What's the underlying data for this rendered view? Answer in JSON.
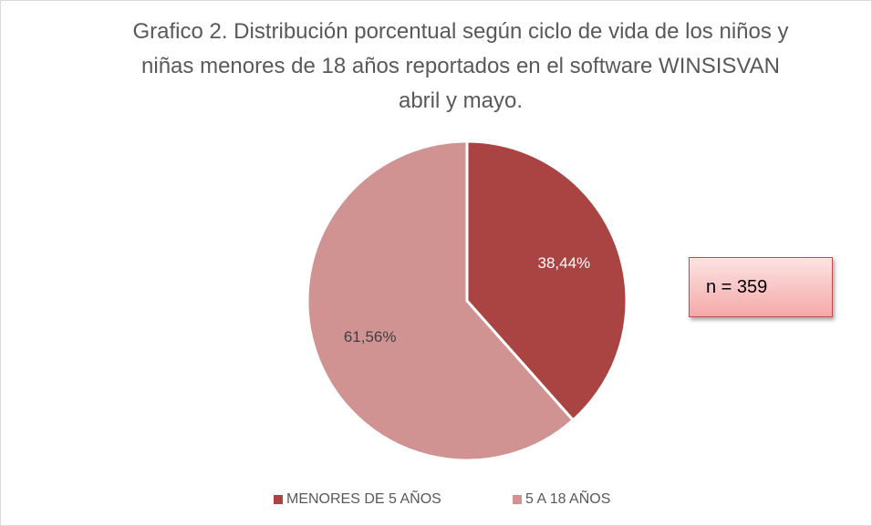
{
  "chart_data": {
    "type": "pie",
    "title": "Grafico 2. Distribución porcentual según ciclo de vida de los niños y niñas menores de 18 años reportados en el software WINSISVAN abril y mayo.",
    "categories": [
      "MENORES DE 5 AÑOS",
      "5 A 18 AÑOS"
    ],
    "values": [
      38.44,
      61.56
    ],
    "value_labels": [
      "38,44%",
      "61,56%"
    ],
    "colors": [
      "#a94442",
      "#d09392"
    ],
    "annotation": "n = 359",
    "legend": "bottom"
  }
}
